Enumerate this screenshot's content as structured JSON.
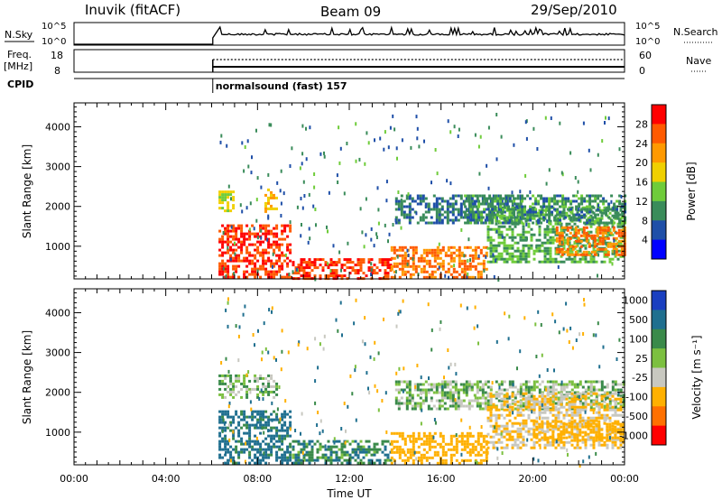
{
  "header": {
    "station": "Inuvik (fitACF)",
    "beam": "Beam 09",
    "date": "29/Sep/2010"
  },
  "top_panels": {
    "nsky_label": "N.Sky",
    "nsky_ticks": [
      "10^5",
      "10^0"
    ],
    "nsearch_label": "N.Search",
    "nsearch_ticks": [
      "10^5",
      "10^0"
    ],
    "freq_label": "Freq.",
    "freq_unit": "[MHz]",
    "freq_ticks": [
      "18",
      "8"
    ],
    "nave_label": "Nave",
    "nave_ticks": [
      "60",
      "0"
    ],
    "cpid_label": "CPID",
    "cpid_text": "normalsound (fast) 157",
    "cpid_start_hour": 6.05
  },
  "colors": {
    "power_scale": [
      "#0000ff",
      "#1f4fa8",
      "#3a8c5a",
      "#6fcc3a",
      "#f0d000",
      "#ff9900",
      "#ff5a00",
      "#ff0000"
    ],
    "velocity_scale": [
      "#1a3fc0",
      "#1f6f8f",
      "#3a8a4a",
      "#7cc040",
      "#c8c8c0",
      "#ffb000",
      "#ff7000",
      "#ff0000"
    ]
  },
  "chart_data": [
    {
      "type": "heatmap",
      "title": "",
      "xlabel": "",
      "ylabel": "Slant Range [km]",
      "x_ticks": [
        "00:00",
        "04:00",
        "08:00",
        "12:00",
        "16:00",
        "20:00",
        "00:00"
      ],
      "xlim_hours": [
        0,
        24
      ],
      "y_ticks": [
        "1000",
        "2000",
        "3000",
        "4000"
      ],
      "ylim_km": [
        180,
        4600
      ],
      "colorbar_label": "Power [dB]",
      "colorbar_ticks": [
        "4",
        "8",
        "12",
        "16",
        "20",
        "24",
        "28"
      ],
      "clim": [
        0,
        32
      ],
      "regions": [
        {
          "t0": 6.3,
          "t1": 7.0,
          "r0": 1900,
          "r1": 2400,
          "level": 16
        },
        {
          "t0": 8.3,
          "t1": 8.8,
          "r0": 1900,
          "r1": 2450,
          "level": 20
        },
        {
          "t0": 6.3,
          "t1": 9.4,
          "r0": 250,
          "r1": 1550,
          "level": 28
        },
        {
          "t0": 9.5,
          "t1": 13.8,
          "r0": 200,
          "r1": 700,
          "level": 28
        },
        {
          "t0": 13.8,
          "t1": 18.0,
          "r0": 200,
          "r1": 1000,
          "level": 24
        },
        {
          "t0": 14.0,
          "t1": 19.5,
          "r0": 1600,
          "r1": 2300,
          "level": 8
        },
        {
          "t0": 18.0,
          "t1": 24.0,
          "r0": 600,
          "r1": 2000,
          "level": 12
        },
        {
          "t0": 21.0,
          "t1": 24.0,
          "r0": 800,
          "r1": 1500,
          "level": 24
        },
        {
          "t0": 17.0,
          "t1": 24.0,
          "r0": 1600,
          "r1": 2300,
          "level": 10
        }
      ]
    },
    {
      "type": "heatmap",
      "title": "",
      "xlabel": "Time UT",
      "ylabel": "Slant Range [km]",
      "x_ticks": [
        "00:00",
        "04:00",
        "08:00",
        "12:00",
        "16:00",
        "20:00",
        "00:00"
      ],
      "xlim_hours": [
        0,
        24
      ],
      "y_ticks": [
        "1000",
        "2000",
        "3000",
        "4000"
      ],
      "ylim_km": [
        180,
        4600
      ],
      "colorbar_label": "Velocity [m s⁻¹]",
      "colorbar_ticks": [
        "1000",
        "500",
        "100",
        "25",
        "-25",
        "-100",
        "-500",
        "-1000"
      ],
      "regions": [
        {
          "t0": 6.3,
          "t1": 8.8,
          "r0": 1900,
          "r1": 2450,
          "level": 0
        },
        {
          "t0": 6.3,
          "t1": 9.4,
          "r0": 250,
          "r1": 1550,
          "level": 150
        },
        {
          "t0": 9.5,
          "t1": 13.8,
          "r0": 200,
          "r1": 800,
          "level": 80
        },
        {
          "t0": 13.8,
          "t1": 18.0,
          "r0": 200,
          "r1": 1000,
          "level": -300
        },
        {
          "t0": 14.0,
          "t1": 24.0,
          "r0": 1600,
          "r1": 2300,
          "level": 0
        },
        {
          "t0": 18.0,
          "t1": 24.0,
          "r0": 600,
          "r1": 2000,
          "level": -100
        },
        {
          "t0": 20.0,
          "t1": 24.0,
          "r0": 800,
          "r1": 1300,
          "level": -400
        }
      ]
    }
  ]
}
